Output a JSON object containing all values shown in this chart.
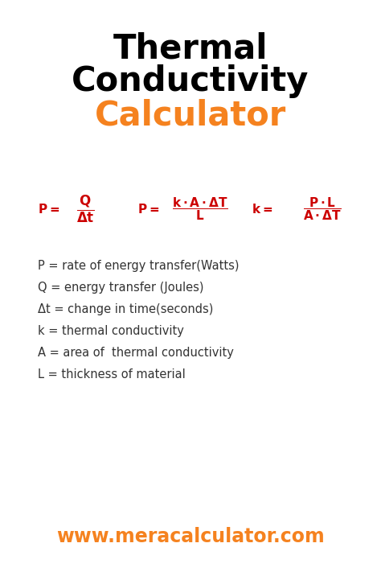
{
  "bg_color": "#ffffff",
  "title_line1": "Thermal",
  "title_line2": "Conductivity",
  "title_color": "#000000",
  "title_fontsize": 30,
  "subtitle": "Calculator",
  "subtitle_color": "#f5821f",
  "subtitle_fontsize": 30,
  "formula_color": "#cc0000",
  "def_color": "#333333",
  "website": "www.meracalculator.com",
  "website_color": "#f5821f",
  "website_fontsize": 17,
  "def_fontsize": 10.5,
  "def_lines": [
    "P = rate of energy transfer(Watts)",
    "Q = energy transfer (Joules)",
    "Δt = change in time(seconds)",
    "k = thermal conductivity",
    "A = area of  thermal conductivity",
    "L = thickness of material"
  ]
}
